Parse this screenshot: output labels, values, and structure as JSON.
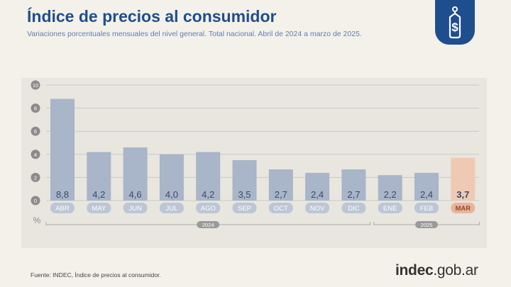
{
  "header": {
    "title": "Índice de precios al consumidor",
    "subtitle": "Variaciones porcentuales mensuales del nivel general. Total nacional. Abril de 2024 a marzo de 2025."
  },
  "badge": {
    "icon": "price-tag-dollar-icon",
    "color": "#1f4e8f"
  },
  "footer": {
    "source": "Fuente: INDEC, Índice de precios al consumidor.",
    "logo_main": "indec",
    "logo_suffix": ".gob.ar"
  },
  "chart_data": {
    "type": "bar",
    "categories": [
      "ABR",
      "MAY",
      "JUN",
      "JUL",
      "AGO",
      "SEP",
      "OCT",
      "NOV",
      "DIC",
      "ENE",
      "FEB",
      "MAR"
    ],
    "values": [
      8.8,
      4.2,
      4.6,
      4.0,
      4.2,
      3.5,
      2.7,
      2.4,
      2.7,
      2.2,
      2.4,
      3.7
    ],
    "value_labels": [
      "8,8",
      "4,2",
      "4,6",
      "4,0",
      "4,2",
      "3,5",
      "2,7",
      "2,4",
      "2,7",
      "2,2",
      "2,4",
      "3,7"
    ],
    "yticks": [
      "0",
      "2",
      "4",
      "6",
      "8",
      "10"
    ],
    "ylim": [
      0,
      10
    ],
    "ylabel": "%",
    "grid": true,
    "year_groups": [
      {
        "label": "2024",
        "from": 0,
        "to": 8
      },
      {
        "label": "2025",
        "from": 9,
        "to": 11
      }
    ],
    "highlight_index": 11,
    "colors": {
      "bar": "#a9b5c8",
      "bar_highlight": "#efc9b3",
      "label_box": "#bcc6d5",
      "label_box_highlight": "#e9b49b",
      "value_text": "#3b4a66",
      "grid": "#c9c9c9",
      "axis_text": "#888888"
    }
  }
}
